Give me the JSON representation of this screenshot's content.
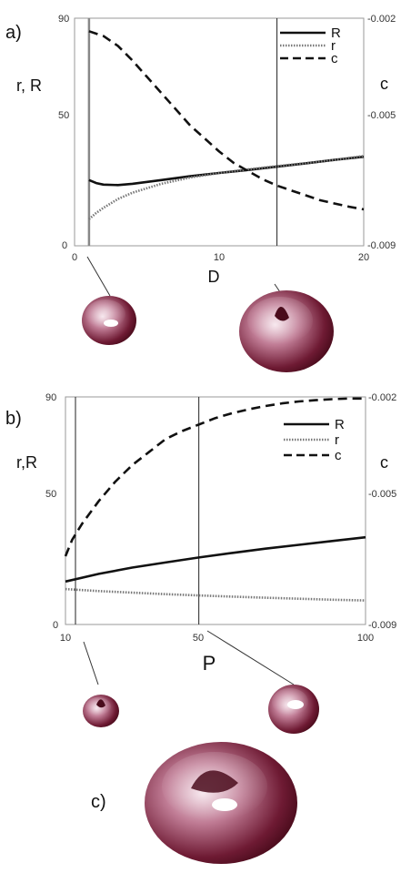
{
  "chart_data": [
    {
      "type": "line",
      "panel_label": "a)",
      "xlabel": "D",
      "ylabel_left": "r, R",
      "ylabel_right": "c",
      "xlim": [
        0,
        20
      ],
      "ylim_left": [
        0,
        90
      ],
      "ylim_right": [
        -0.009,
        -0.002
      ],
      "x_ticks": [
        "0",
        "10",
        "20"
      ],
      "y_left_ticks": [
        "0",
        "50",
        "90"
      ],
      "y_right_ticks": [
        "-0.002",
        "-0.005",
        "-0.009"
      ],
      "grid": false,
      "legend_position": "top-right",
      "markers_x": [
        1,
        14
      ],
      "series": [
        {
          "name": "R",
          "axis": "left",
          "style": "solid",
          "x": [
            1,
            1.5,
            2,
            3,
            4,
            6,
            8,
            10,
            12,
            14,
            16,
            18,
            20
          ],
          "y": [
            26,
            24.8,
            24.2,
            24,
            24.5,
            26,
            27.5,
            28.8,
            30,
            31.3,
            32.6,
            34,
            35.2
          ]
        },
        {
          "name": "r",
          "axis": "left",
          "style": "dotted",
          "x": [
            1,
            1.5,
            2,
            3,
            4,
            6,
            8,
            10,
            12,
            14,
            16,
            18,
            20
          ],
          "y": [
            10.5,
            13,
            15,
            18.5,
            21,
            24.5,
            27,
            28.8,
            30.2,
            31.5,
            32.7,
            34,
            35.5
          ]
        },
        {
          "name": "c",
          "axis": "right",
          "style": "dashed",
          "x": [
            1,
            2,
            3,
            4,
            5,
            6,
            7,
            8,
            9,
            10,
            11,
            12,
            13,
            14,
            15,
            16,
            17,
            18,
            19,
            20
          ],
          "y": [
            -0.0024,
            -0.00255,
            -0.00285,
            -0.0033,
            -0.0038,
            -0.0043,
            -0.0048,
            -0.0053,
            -0.0057,
            -0.0061,
            -0.00645,
            -0.0067,
            -0.00695,
            -0.00715,
            -0.0073,
            -0.00745,
            -0.0076,
            -0.0077,
            -0.0078,
            -0.00788
          ]
        }
      ]
    },
    {
      "type": "line",
      "panel_label": "b)",
      "xlabel": "P",
      "ylabel_left": "r,R",
      "ylabel_right": "c",
      "xlim": [
        10,
        100
      ],
      "ylim_left": [
        0,
        90
      ],
      "ylim_right": [
        -0.009,
        -0.002
      ],
      "x_ticks": [
        "10",
        "50",
        "100"
      ],
      "y_left_ticks": [
        "0",
        "50",
        "90"
      ],
      "y_right_ticks": [
        "-0.002",
        "-0.005",
        "-0.009"
      ],
      "grid": false,
      "legend_position": "top-right",
      "markers_x": [
        13,
        50
      ],
      "series": [
        {
          "name": "R",
          "axis": "left",
          "style": "solid",
          "x": [
            10,
            20,
            30,
            40,
            50,
            60,
            70,
            80,
            90,
            100
          ],
          "y": [
            17,
            20,
            22.5,
            24.5,
            26.5,
            28.3,
            30,
            31.5,
            33,
            34.5
          ]
        },
        {
          "name": "r",
          "axis": "left",
          "style": "dotted",
          "x": [
            10,
            20,
            30,
            40,
            50,
            60,
            70,
            80,
            90,
            100
          ],
          "y": [
            14,
            13.2,
            12.6,
            12,
            11.5,
            11,
            10.6,
            10.2,
            9.8,
            9.5
          ]
        },
        {
          "name": "c",
          "axis": "right",
          "style": "dashed",
          "x": [
            10,
            12,
            15,
            20,
            25,
            30,
            35,
            40,
            45,
            50,
            55,
            60,
            65,
            70,
            75,
            80,
            85,
            90,
            95,
            100
          ],
          "y": [
            -0.0069,
            -0.0064,
            -0.0059,
            -0.0052,
            -0.0046,
            -0.0041,
            -0.0037,
            -0.0033,
            -0.00305,
            -0.00285,
            -0.00265,
            -0.0025,
            -0.00238,
            -0.00228,
            -0.0022,
            -0.00214,
            -0.0021,
            -0.00207,
            -0.00205,
            -0.00205
          ]
        }
      ]
    }
  ],
  "panel_c_label": "c)",
  "colors": {
    "torus_dark": "#5a0f22",
    "torus_mid": "#a0506a",
    "torus_light": "#f2dde6"
  }
}
